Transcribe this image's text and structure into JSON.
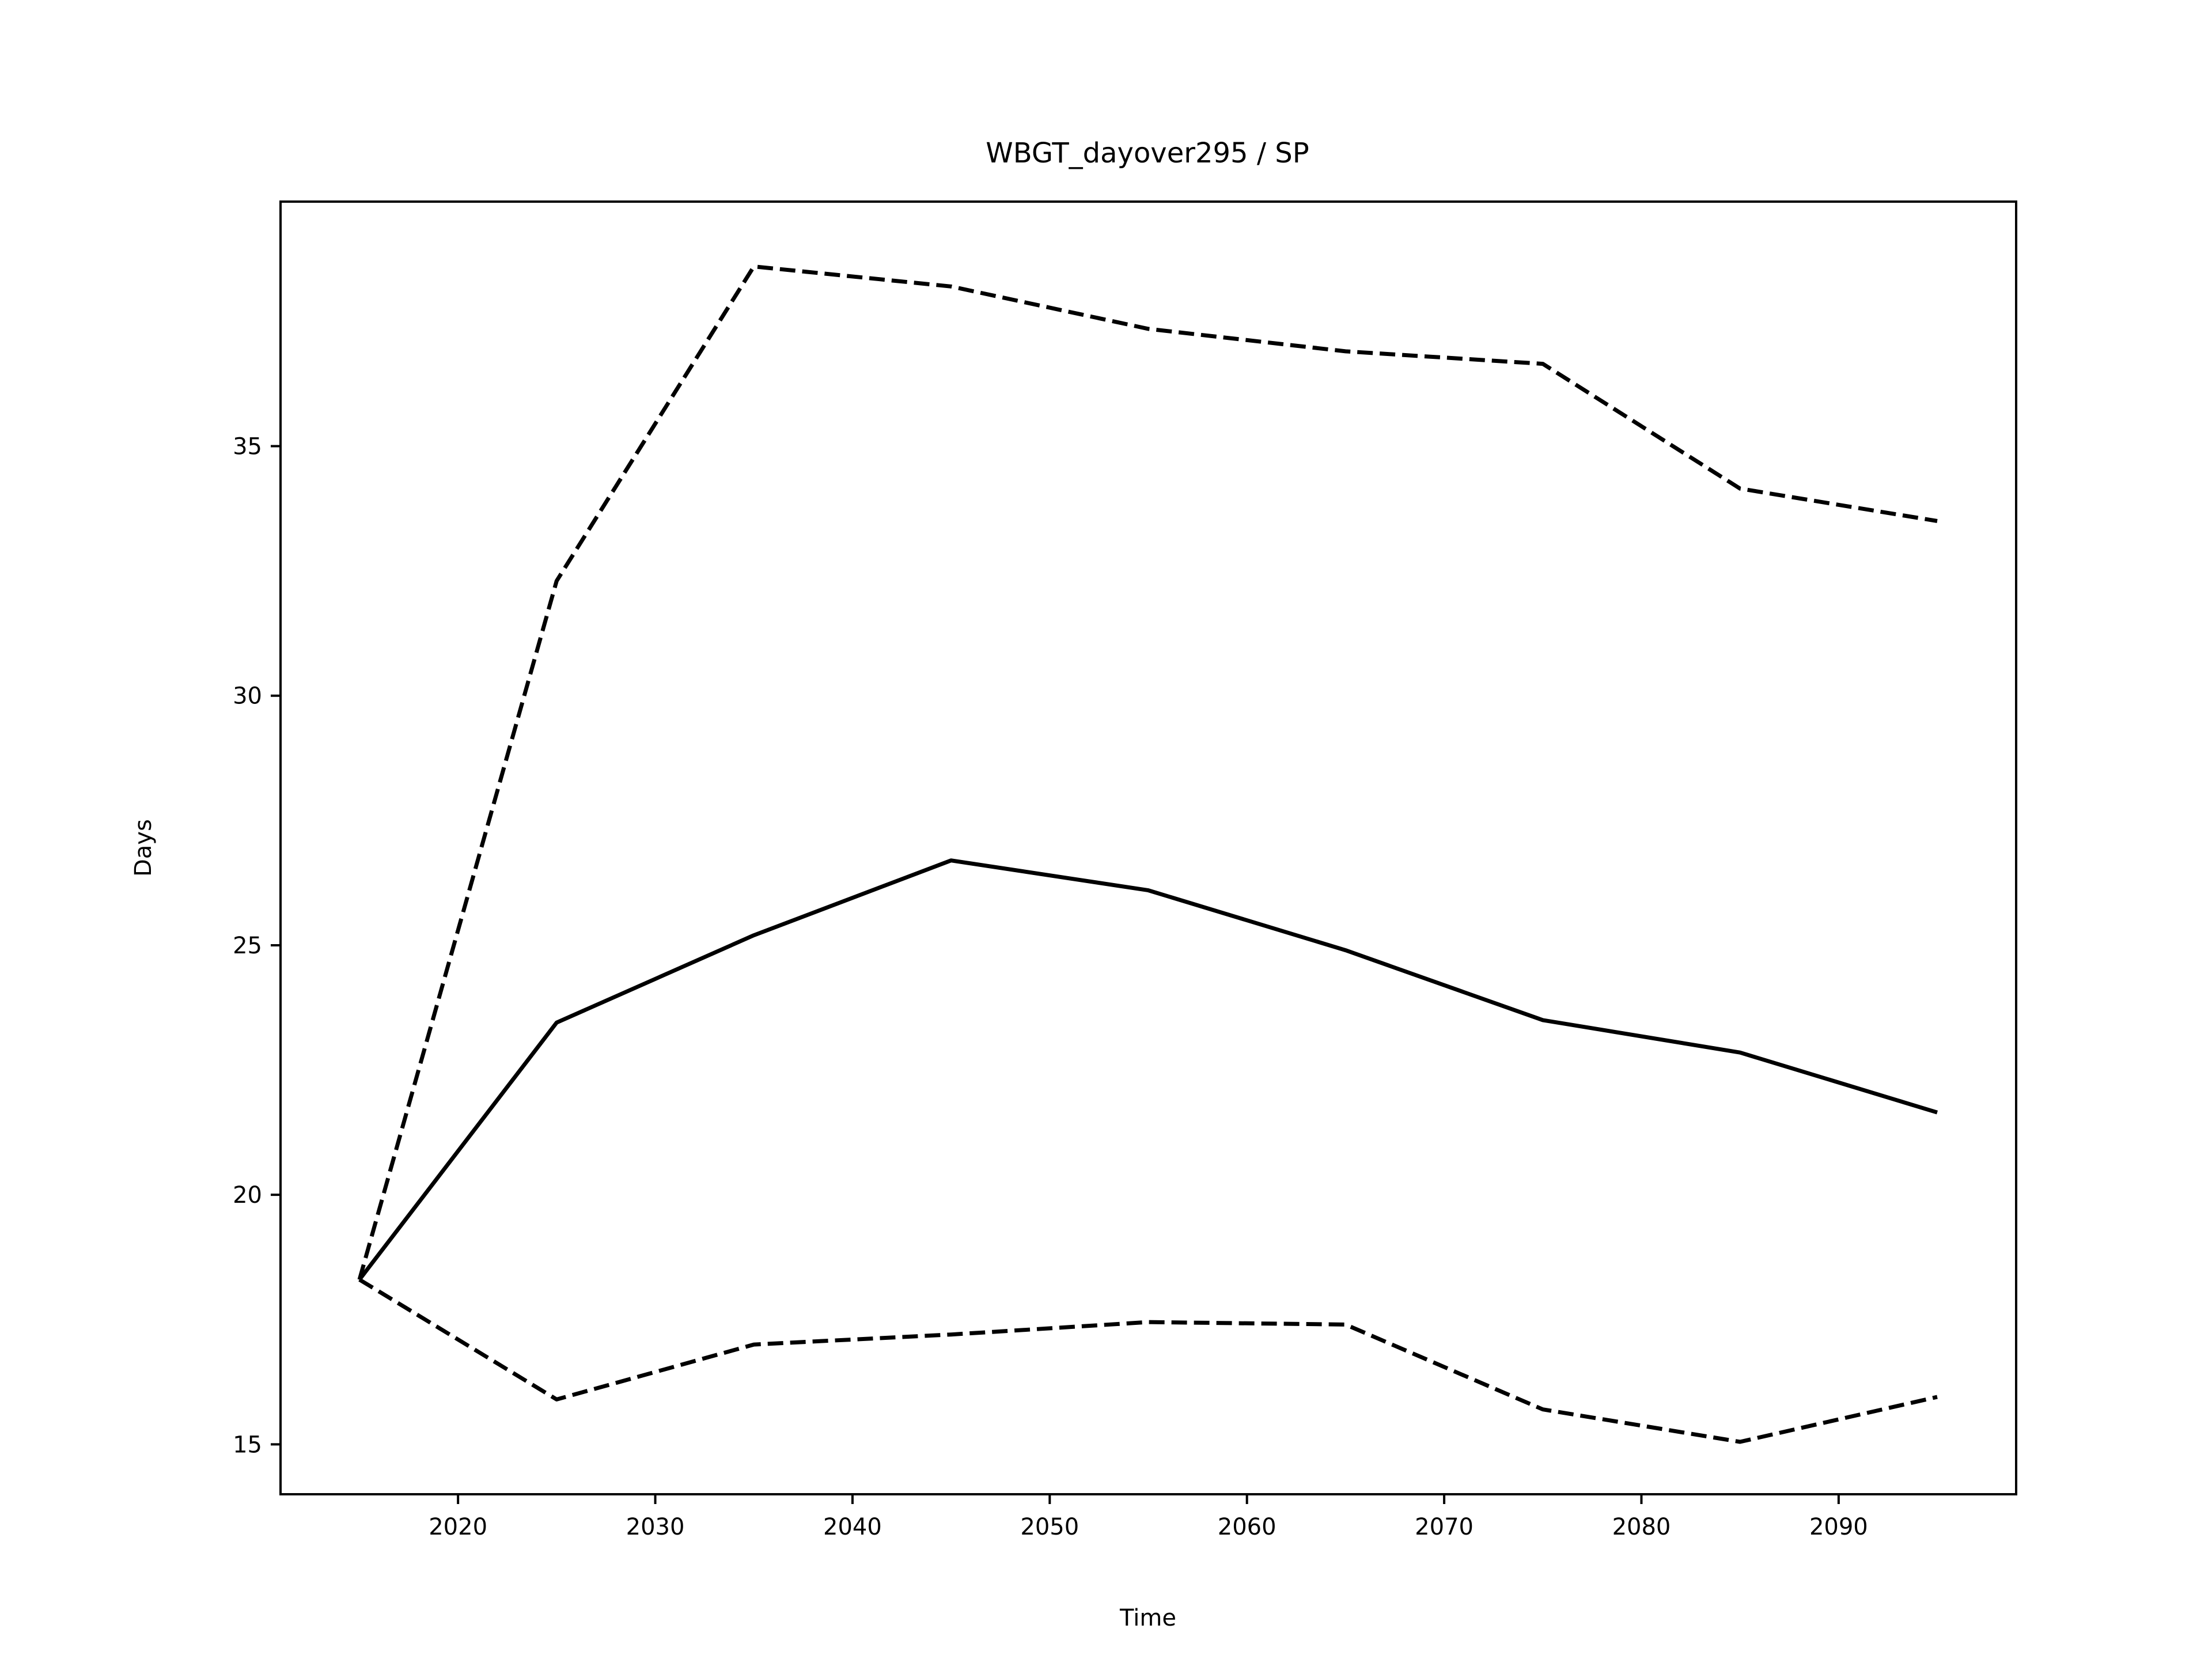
{
  "chart_data": {
    "type": "line",
    "title": "WBGT_dayover295 / SP",
    "xlabel": "Time",
    "ylabel": "Days",
    "x": [
      2015,
      2025,
      2035,
      2045,
      2055,
      2065,
      2075,
      2085,
      2095
    ],
    "xlim": [
      2011,
      2099
    ],
    "ylim": [
      14.0,
      39.9
    ],
    "xticks": [
      2020,
      2030,
      2040,
      2050,
      2060,
      2070,
      2080,
      2090
    ],
    "yticks": [
      15,
      20,
      25,
      30,
      35
    ],
    "grid": false,
    "legend": "none",
    "series": [
      {
        "style": "dashed",
        "color": "#000000",
        "values": [
          18.3,
          32.3,
          38.6,
          38.2,
          37.35,
          36.9,
          36.65,
          34.15,
          33.5
        ]
      },
      {
        "style": "solid",
        "color": "#000000",
        "values": [
          18.3,
          23.45,
          25.2,
          26.7,
          26.1,
          24.9,
          23.5,
          22.85,
          21.65
        ]
      },
      {
        "style": "dashed",
        "color": "#000000",
        "values": [
          18.3,
          15.9,
          17.0,
          17.2,
          17.45,
          17.4,
          15.7,
          15.05,
          15.95
        ]
      }
    ]
  }
}
